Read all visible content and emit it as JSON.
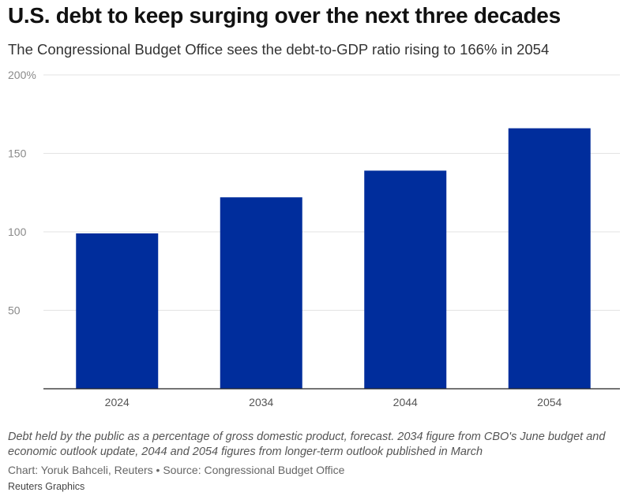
{
  "header": {
    "title": "U.S. debt to keep surging over the next three decades",
    "subtitle": "The Congressional Budget Office sees the debt-to-GDP ratio rising to 166% in 2054"
  },
  "chart_data": {
    "type": "bar",
    "categories": [
      "2024",
      "2034",
      "2044",
      "2054"
    ],
    "values": [
      99,
      122,
      139,
      166
    ],
    "ylim": [
      0,
      200
    ],
    "y_ticks": [
      {
        "value": 200,
        "label": "200%"
      },
      {
        "value": 150,
        "label": "150"
      },
      {
        "value": 100,
        "label": "100"
      },
      {
        "value": 50,
        "label": "50"
      }
    ],
    "grid": true,
    "bar_color": "#002d9c",
    "gridline_color": "#e3e3e3",
    "axis_color": "#222222"
  },
  "footer": {
    "note": "Debt held by the public as a percentage of gross domestic product, forecast. 2034 figure from CBO's June budget and economic outlook update, 2044 and 2054 figures from longer-term outlook published in March",
    "credit": "Chart: Yoruk Bahceli, Reuters • Source: Congressional Budget Office",
    "brand": "Reuters Graphics"
  }
}
